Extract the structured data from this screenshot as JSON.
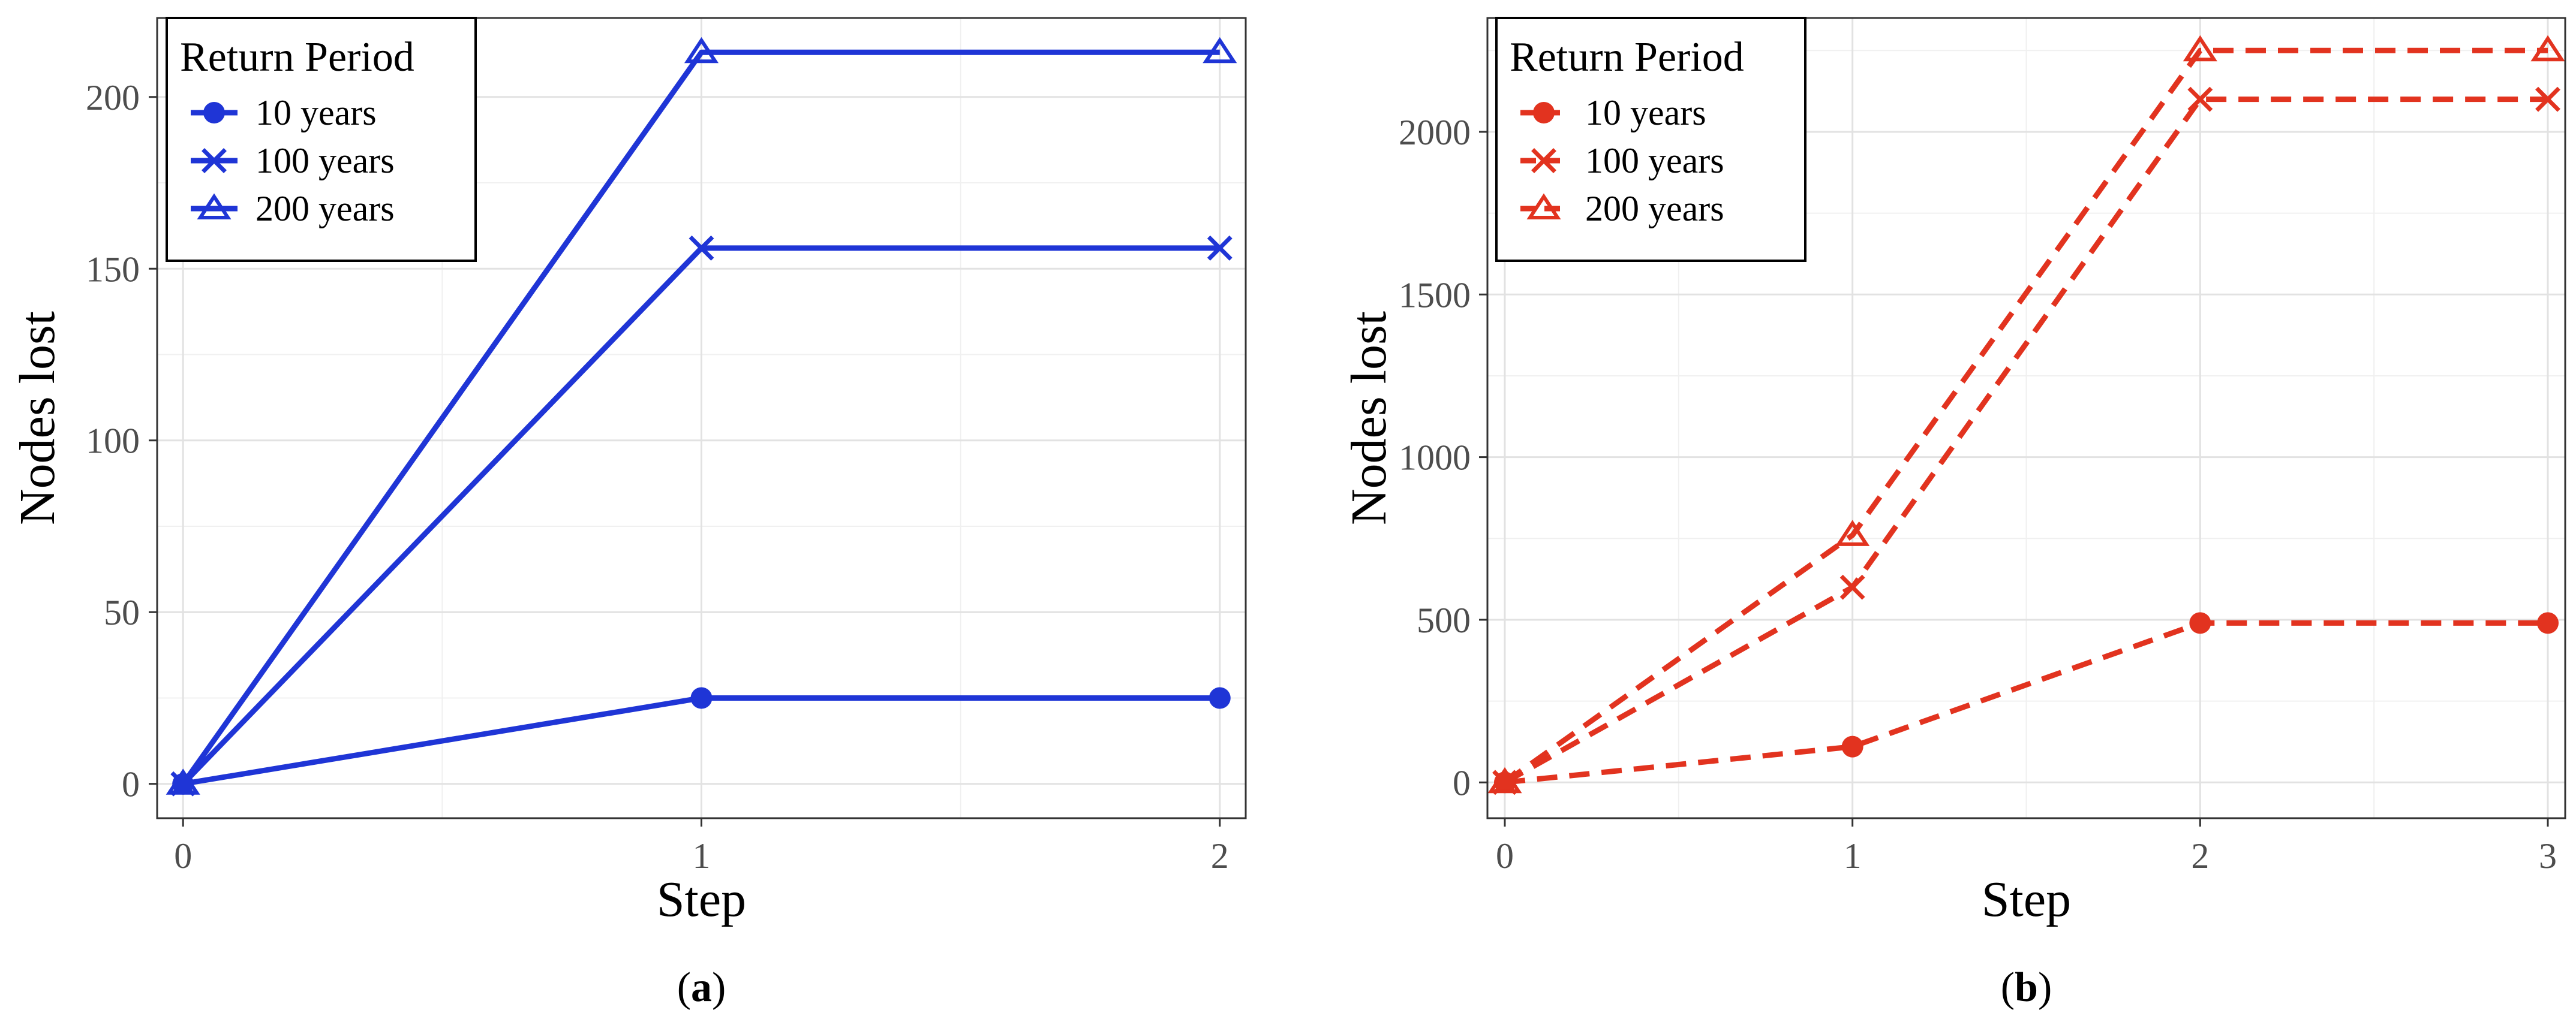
{
  "chart_data": [
    {
      "type": "line",
      "panel_label": {
        "open": "(",
        "letter": "a",
        "close": ")"
      },
      "xlabel": "Step",
      "ylabel": "Nodes lost",
      "x": [
        0,
        1,
        2
      ],
      "xlim": [
        -0.05,
        2.05
      ],
      "ylim": [
        -10,
        223
      ],
      "xticks": [
        0,
        1,
        2
      ],
      "yticks": [
        0,
        50,
        100,
        150,
        200
      ],
      "xtick_labels": [
        "0",
        "1",
        "2"
      ],
      "ytick_labels": [
        "0",
        "50",
        "100",
        "150",
        "200"
      ],
      "grid": true,
      "line_style": "solid",
      "color": "#1f35d6",
      "legend": {
        "title": "Return Period",
        "position": "top-left"
      },
      "series": [
        {
          "name": "10 years",
          "marker": "circle",
          "values": [
            0,
            25,
            25
          ]
        },
        {
          "name": "100 years",
          "marker": "cross",
          "values": [
            0,
            156,
            156
          ]
        },
        {
          "name": "200 years",
          "marker": "triangle",
          "values": [
            0,
            213,
            213
          ]
        }
      ]
    },
    {
      "type": "line",
      "panel_label": {
        "open": "(",
        "letter": "b",
        "close": ")"
      },
      "xlabel": "Step",
      "ylabel": "Nodes lost",
      "x": [
        0,
        1,
        2,
        3
      ],
      "xlim": [
        -0.05,
        3.05
      ],
      "ylim": [
        -110,
        2350
      ],
      "xticks": [
        0,
        1,
        2,
        3
      ],
      "yticks": [
        0,
        500,
        1000,
        1500,
        2000
      ],
      "xtick_labels": [
        "0",
        "1",
        "2",
        "3"
      ],
      "ytick_labels": [
        "0",
        "500",
        "1000",
        "1500",
        "2000"
      ],
      "grid": true,
      "line_style": "dashed",
      "color": "#e2331f",
      "legend": {
        "title": "Return Period",
        "position": "top-left"
      },
      "series": [
        {
          "name": "10 years",
          "marker": "circle",
          "values": [
            0,
            110,
            490,
            490
          ]
        },
        {
          "name": "100 years",
          "marker": "cross",
          "values": [
            0,
            600,
            2100,
            2100
          ]
        },
        {
          "name": "200 years",
          "marker": "triangle",
          "values": [
            0,
            760,
            2250,
            2250
          ]
        }
      ]
    }
  ]
}
